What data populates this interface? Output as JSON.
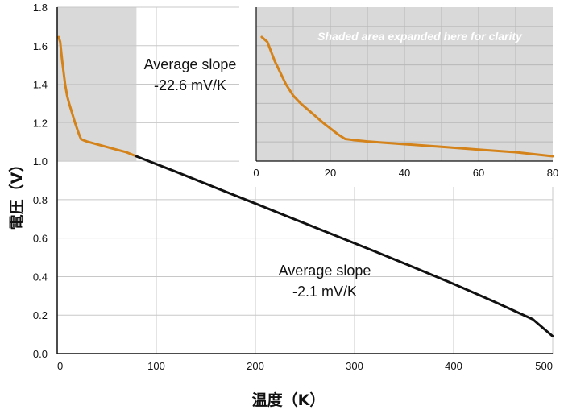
{
  "chart_data": [
    {
      "type": "line",
      "xlabel": "温度（K）",
      "ylabel": "電圧（V）",
      "xlim": [
        0,
        500
      ],
      "ylim": [
        0,
        1.8
      ],
      "x_ticks": [
        "0",
        "100",
        "200",
        "300",
        "400",
        "500"
      ],
      "y_ticks": [
        "0.0",
        "0.2",
        "0.4",
        "0.6",
        "0.8",
        "1.0",
        "1.2",
        "1.4",
        "1.6",
        "1.8"
      ],
      "grid": true,
      "shaded_region": {
        "x": [
          0,
          80
        ],
        "y": [
          1.0,
          1.8
        ],
        "color": "#d9d9d9"
      },
      "series": [
        {
          "color": "#d4821a",
          "x": [
            1.5,
            3,
            5,
            8,
            10,
            12,
            15,
            18,
            20,
            22,
            24,
            26,
            30,
            40,
            50,
            60,
            70,
            80
          ],
          "y": [
            1.645,
            1.62,
            1.52,
            1.4,
            1.34,
            1.3,
            1.25,
            1.2,
            1.17,
            1.14,
            1.115,
            1.11,
            1.102,
            1.088,
            1.074,
            1.06,
            1.046,
            1.025
          ]
        },
        {
          "color": "#111111",
          "x": [
            80,
            120,
            160,
            200,
            240,
            280,
            320,
            360,
            400,
            440,
            480,
            500
          ],
          "y": [
            1.025,
            0.945,
            0.862,
            0.78,
            0.697,
            0.615,
            0.532,
            0.448,
            0.362,
            0.272,
            0.178,
            0.09
          ]
        }
      ],
      "annotations": [
        {
          "line1": "Average slope",
          "line2": "-22.6 mV/K"
        },
        {
          "line1": "Average slope",
          "line2": "-2.1 mV/K"
        }
      ]
    },
    {
      "type": "line",
      "title": "Shaded area expanded here for clarity",
      "xlim": [
        0,
        80
      ],
      "ylim": [
        1.0,
        1.8
      ],
      "x_ticks": [
        "0",
        "20",
        "40",
        "60",
        "80"
      ],
      "grid": true,
      "background": "#d9d9d9",
      "series": [
        {
          "color": "#d4821a",
          "x": [
            1.5,
            3,
            5,
            8,
            10,
            12,
            15,
            18,
            20,
            22,
            24,
            26,
            30,
            40,
            50,
            60,
            70,
            80
          ],
          "y": [
            1.645,
            1.62,
            1.52,
            1.4,
            1.34,
            1.3,
            1.25,
            1.2,
            1.17,
            1.14,
            1.115,
            1.11,
            1.102,
            1.088,
            1.074,
            1.06,
            1.046,
            1.025
          ]
        }
      ]
    }
  ]
}
